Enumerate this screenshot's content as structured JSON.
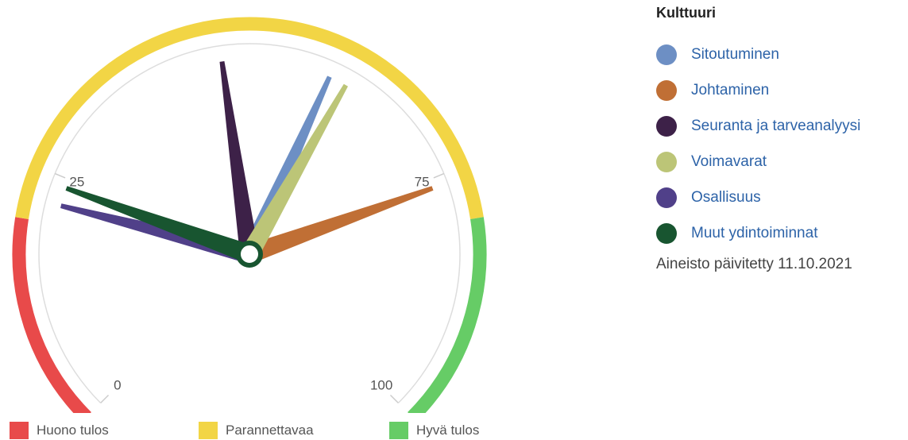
{
  "chart_data": {
    "type": "gauge",
    "min": 0,
    "max": 100,
    "tick_labels": [
      "0",
      "25",
      "75",
      "100"
    ],
    "bands": [
      {
        "name": "Huono tulos",
        "from": 0,
        "to": 20,
        "color": "#e84a4a"
      },
      {
        "name": "Parannettavaa",
        "from": 20,
        "to": 80,
        "color": "#f2d545"
      },
      {
        "name": "Hyvä tulos",
        "from": 80,
        "to": 100,
        "color": "#66cc66"
      }
    ],
    "series": [
      {
        "name": "Sitoutuminen",
        "value": 59,
        "color": "#6d8fc4"
      },
      {
        "name": "Johtaminen",
        "value": 76,
        "color": "#c06f35"
      },
      {
        "name": "Seuranta ja tarveanalyysi",
        "value": 47,
        "color": "#3d2148"
      },
      {
        "name": "Voimavarat",
        "value": 61,
        "color": "#bcc577"
      },
      {
        "name": "Osallisuus",
        "value": 22,
        "color": "#504089"
      },
      {
        "name": "Muut ydintoiminnat",
        "value": 24,
        "color": "#185530"
      }
    ]
  },
  "legend": {
    "title": "Kulttuuri",
    "updated": "Aineisto päivitetty 11.10.2021"
  }
}
